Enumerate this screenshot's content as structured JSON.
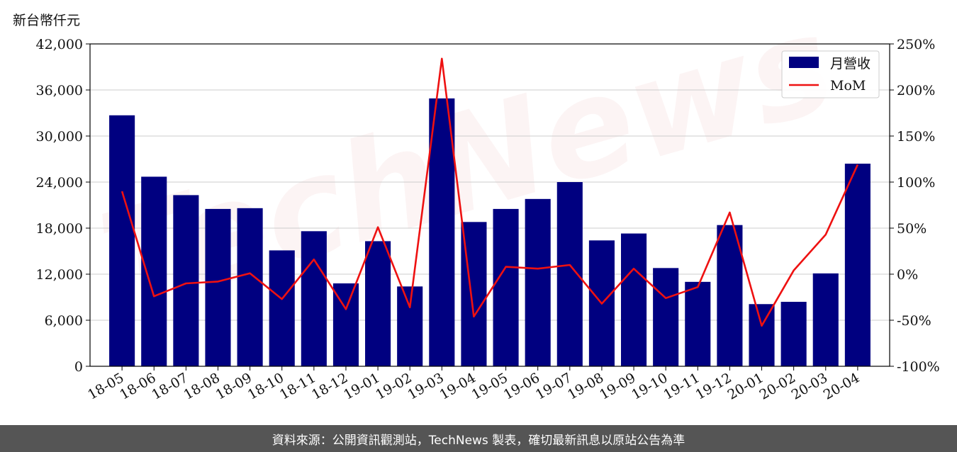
{
  "unit_label": "新台幣仟元",
  "watermark": "TechNews",
  "footer": "資料來源：公開資訊觀測站，TechNews 製表，確切最新訊息以原站公告為準",
  "colors": {
    "bar": "#000080",
    "line": "#ee1111",
    "footer_bg": "#555555"
  },
  "chart_data": {
    "type": "bar",
    "categories": [
      "18-05",
      "18-06",
      "18-07",
      "18-08",
      "18-09",
      "18-10",
      "18-11",
      "18-12",
      "19-01",
      "19-02",
      "19-03",
      "19-04",
      "19-05",
      "19-06",
      "19-07",
      "19-08",
      "19-09",
      "19-10",
      "19-11",
      "19-12",
      "20-01",
      "20-02",
      "20-03",
      "20-04"
    ],
    "series": [
      {
        "name": "月營收",
        "type": "bar",
        "axis": "left",
        "values": [
          32700,
          24700,
          22300,
          20500,
          20600,
          15100,
          17600,
          10800,
          16300,
          10400,
          34900,
          18800,
          20500,
          21800,
          24000,
          16400,
          17300,
          12800,
          11000,
          18400,
          8100,
          8400,
          12100,
          26400
        ]
      },
      {
        "name": "MoM",
        "type": "line",
        "axis": "right",
        "values": [
          90,
          -24,
          -10,
          -8,
          1,
          -27,
          16,
          -38,
          51,
          -36,
          234,
          -46,
          8,
          6,
          10,
          -32,
          6,
          -26,
          -14,
          67,
          -56,
          4,
          43,
          119
        ]
      }
    ],
    "y_left": {
      "ylim": [
        0,
        42000
      ],
      "ticks": [
        0,
        6000,
        12000,
        18000,
        24000,
        30000,
        36000,
        42000
      ],
      "tick_labels": [
        "0",
        "6,000",
        "12,000",
        "18,000",
        "24,000",
        "30,000",
        "36,000",
        "42,000"
      ]
    },
    "y_right": {
      "ylim": [
        -100,
        250
      ],
      "ticks": [
        -100,
        -50,
        0,
        50,
        100,
        150,
        200,
        250
      ],
      "tick_labels": [
        "-100%",
        "-50%",
        "0%",
        "50%",
        "100%",
        "150%",
        "200%",
        "250%"
      ]
    },
    "grid": "horizontal",
    "legend": "top-right"
  }
}
